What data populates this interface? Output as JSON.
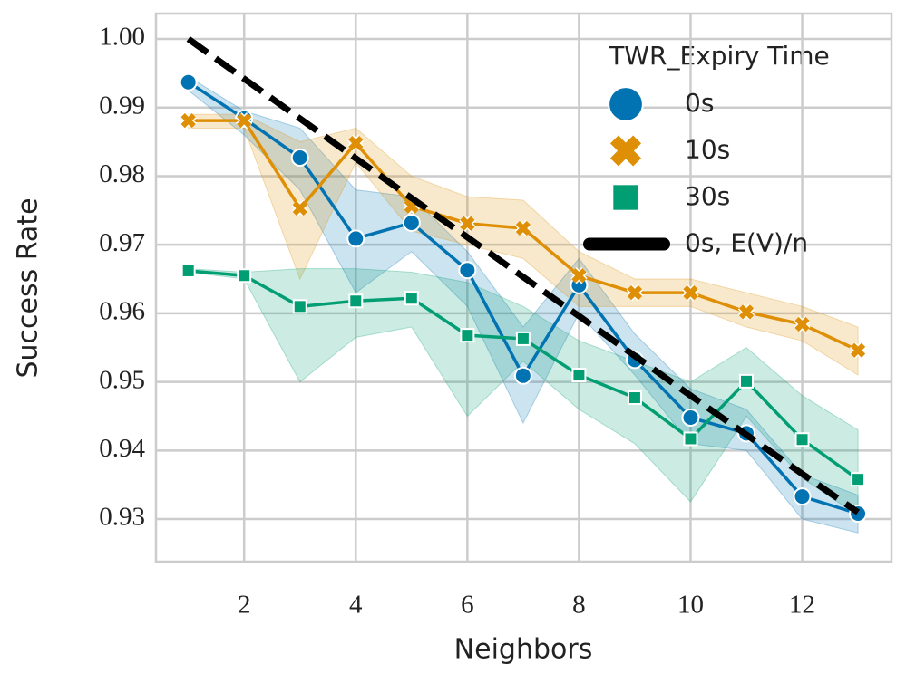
{
  "chart_data": {
    "type": "line",
    "xlabel": "Neighbors",
    "ylabel": "Success Rate",
    "legend_title": "TWR_Expiry Time",
    "legend_position": "upper right",
    "grid": true,
    "x": [
      1,
      2,
      3,
      4,
      5,
      6,
      7,
      8,
      9,
      10,
      11,
      12,
      13
    ],
    "xlim": [
      0.42,
      13.6
    ],
    "xticks": [
      2,
      4,
      6,
      8,
      10,
      12
    ],
    "ylim": [
      0.9238,
      1.0037
    ],
    "yticks": [
      0.93,
      0.94,
      0.95,
      0.96,
      0.97,
      0.98,
      0.99,
      {
        "value": 1,
        "label": "1.00"
      }
    ],
    "series": [
      {
        "name": "0s",
        "color": "#0173b2",
        "marker": "circle",
        "values": [
          0.9937,
          0.9884,
          0.9827,
          0.9709,
          0.9732,
          0.9663,
          0.9509,
          0.9641,
          0.9532,
          0.9448,
          0.9425,
          0.9333,
          0.9308
        ],
        "lower": [
          0.9925,
          0.986,
          0.978,
          0.963,
          0.969,
          0.961,
          0.944,
          0.96,
          0.951,
          0.941,
          0.94,
          0.93,
          0.928
        ],
        "upper": [
          0.9945,
          0.9895,
          0.987,
          0.978,
          0.977,
          0.969,
          0.958,
          0.968,
          0.957,
          0.949,
          0.946,
          0.9365,
          0.9335
        ]
      },
      {
        "name": "10s",
        "color": "#de8f05",
        "marker": "x",
        "values": [
          0.9881,
          0.9881,
          0.9753,
          0.9848,
          0.9756,
          0.9731,
          0.9724,
          0.9655,
          0.963,
          0.963,
          0.9602,
          0.9584,
          0.9546
        ],
        "lower": [
          0.987,
          0.987,
          0.965,
          0.982,
          0.972,
          0.97,
          0.968,
          0.961,
          0.961,
          0.961,
          0.958,
          0.956,
          0.951
        ],
        "upper": [
          0.989,
          0.989,
          0.985,
          0.987,
          0.98,
          0.977,
          0.9765,
          0.969,
          0.965,
          0.965,
          0.963,
          0.961,
          0.958
        ]
      },
      {
        "name": "30s",
        "color": "#029e73",
        "marker": "square",
        "values": [
          0.9662,
          0.9655,
          0.961,
          0.9618,
          0.9622,
          0.9568,
          0.9563,
          0.951,
          0.9477,
          0.9417,
          0.9501,
          0.9416,
          0.9358
        ],
        "lower": [
          0.966,
          0.965,
          0.95,
          0.9565,
          0.958,
          0.945,
          0.953,
          0.946,
          0.941,
          0.9325,
          0.945,
          0.936,
          0.9305
        ],
        "upper": [
          0.9665,
          0.966,
          0.9665,
          0.9665,
          0.966,
          0.9645,
          0.961,
          0.956,
          0.953,
          0.95,
          0.955,
          0.948,
          0.943
        ]
      },
      {
        "name": "0s, E(V)/n",
        "color": "#000000",
        "marker": "none",
        "dashed": true,
        "values": [
          1,
          0.9942,
          0.9884,
          0.9826,
          0.9768,
          0.9711,
          0.9653,
          0.9596,
          0.9538,
          0.948,
          0.9423,
          0.9366,
          0.931
        ]
      }
    ]
  }
}
